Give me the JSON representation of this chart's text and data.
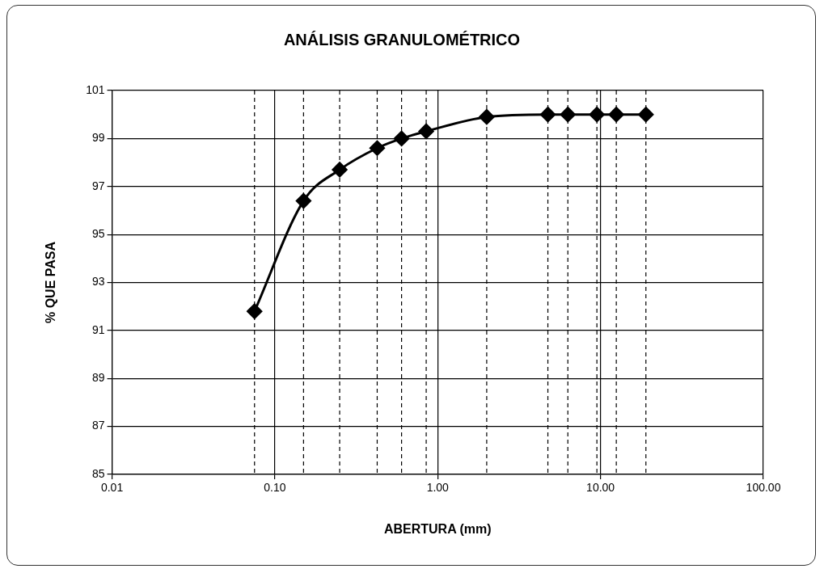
{
  "chart_data": {
    "type": "line",
    "title": "ANÁLISIS GRANULOMÉTRICO",
    "xlabel": "ABERTURA (mm)",
    "ylabel": "% QUE PASA",
    "x": [
      0.075,
      0.15,
      0.25,
      0.425,
      0.6,
      0.85,
      2.0,
      4.75,
      6.3,
      9.5,
      12.5,
      19.0
    ],
    "series": [
      {
        "color": "#000000",
        "values": [
          91.8,
          96.4,
          97.7,
          98.6,
          99.0,
          99.3,
          99.9,
          100,
          100,
          100,
          100,
          100
        ]
      }
    ],
    "log": "x",
    "xlim": [
      0.01,
      100
    ],
    "xticks": [
      {
        "value": 0.01,
        "label": "0.01"
      },
      {
        "value": 0.1,
        "label": "0.10"
      },
      {
        "value": 1,
        "label": "1.00"
      },
      {
        "value": 10,
        "label": "10.00"
      },
      {
        "value": 100,
        "label": "100.00"
      }
    ],
    "ylim": [
      85,
      101
    ],
    "yticks": [
      85,
      87,
      89,
      91,
      93,
      95,
      97,
      99,
      101
    ],
    "grid": true,
    "legend": false,
    "marker": "diamond",
    "line_style": "solid",
    "ref_lines": [
      {
        "axis": "x",
        "value": 0.075,
        "line_style": "dashed"
      },
      {
        "axis": "x",
        "value": 0.15,
        "line_style": "dashed"
      },
      {
        "axis": "x",
        "value": 0.25,
        "line_style": "dashed"
      },
      {
        "axis": "x",
        "value": 0.425,
        "line_style": "dashed"
      },
      {
        "axis": "x",
        "value": 0.6,
        "line_style": "dashed"
      },
      {
        "axis": "x",
        "value": 0.85,
        "line_style": "dashed"
      },
      {
        "axis": "x",
        "value": 2.0,
        "line_style": "dashed"
      },
      {
        "axis": "x",
        "value": 4.75,
        "line_style": "dashed"
      },
      {
        "axis": "x",
        "value": 6.3,
        "line_style": "dashed"
      },
      {
        "axis": "x",
        "value": 9.5,
        "line_style": "dashed"
      },
      {
        "axis": "x",
        "value": 12.5,
        "line_style": "dashed"
      },
      {
        "axis": "x",
        "value": 19.0,
        "line_style": "dashed"
      }
    ]
  }
}
